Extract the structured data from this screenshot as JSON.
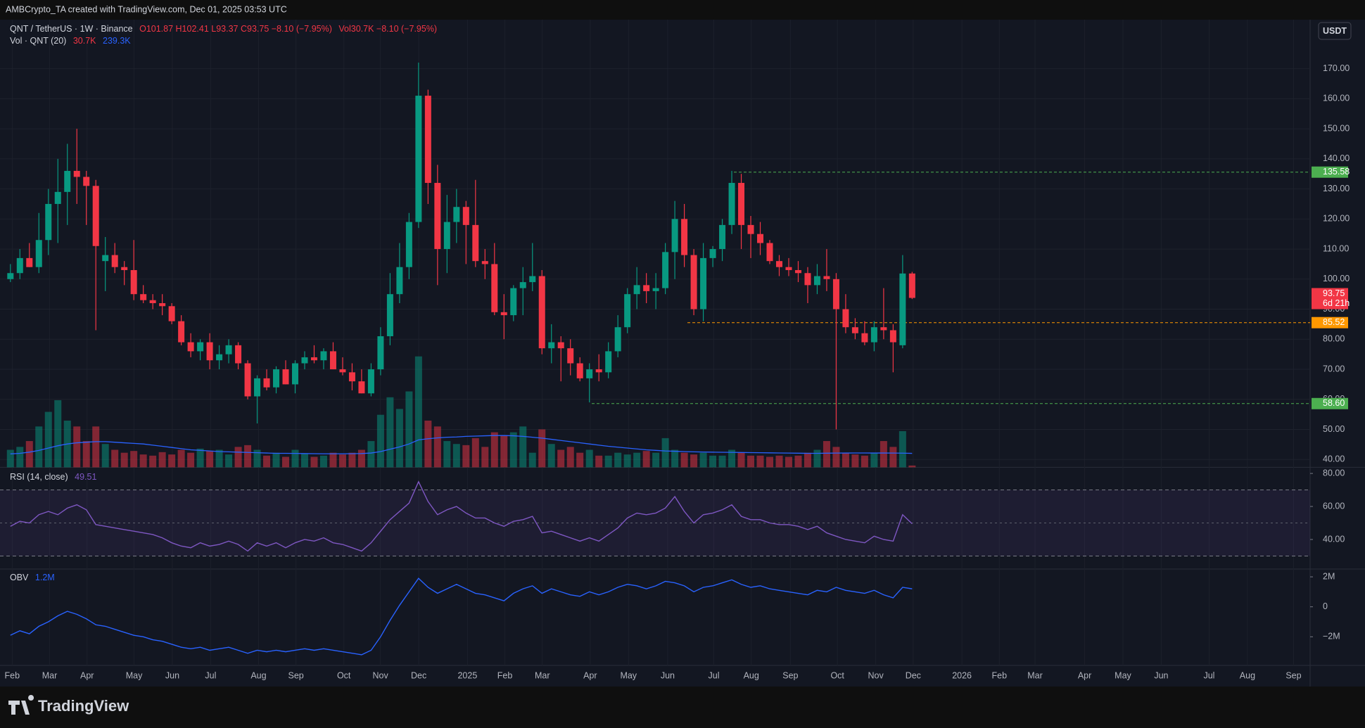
{
  "header": "AMBCrypto_TA created with TradingView.com, Dec 01, 2025 03:53 UTC",
  "footer_brand": "TradingView",
  "currency": "USDT",
  "time_axis": [
    "Feb",
    "Mar",
    "Apr",
    "May",
    "Jun",
    "Jul",
    "Aug",
    "Sep",
    "Oct",
    "Nov",
    "Dec",
    "2025",
    "Feb",
    "Mar",
    "Apr",
    "May",
    "Jun",
    "Jul",
    "Aug",
    "Sep",
    "Oct",
    "Nov",
    "Dec",
    "2026",
    "Feb",
    "Mar",
    "Apr",
    "May",
    "Jun",
    "Jul",
    "Aug",
    "Sep"
  ],
  "chart_data": [
    {
      "type": "candlestick",
      "title": "QNT / TetherUS · 1W · Binance",
      "legend_ohlc": "O101.87 H102.41 L93.37 C93.75 −8.10 (−7.95%)",
      "legend_vol": "Vol30.7K −8.10 (−7.95%)",
      "up_color": "#089981",
      "down_color": "#f23645",
      "grid": true,
      "open": [
        100,
        102,
        107,
        104,
        113,
        125,
        129,
        136,
        134,
        131,
        106,
        108,
        104,
        103,
        95,
        93,
        92,
        91,
        86,
        79,
        76,
        79,
        73,
        75,
        78,
        72,
        61,
        67,
        64,
        70,
        65,
        72,
        74,
        73,
        76,
        70,
        69,
        66,
        62,
        70,
        81,
        95,
        104,
        119,
        161,
        132,
        110,
        119,
        124,
        118,
        106,
        105,
        89,
        88,
        97,
        99,
        101,
        77,
        79,
        77,
        72,
        67,
        70,
        69,
        76,
        84,
        95,
        98,
        96,
        97,
        109,
        120,
        108,
        90,
        107,
        110,
        118,
        132,
        118,
        115,
        112,
        106,
        104,
        103,
        102,
        98,
        101,
        100,
        90,
        84,
        82,
        79,
        84,
        83,
        78,
        101.87
      ],
      "high": [
        105,
        110,
        112,
        122,
        130,
        140,
        145,
        150,
        136,
        133,
        114,
        112,
        106,
        113,
        98,
        95,
        95,
        92,
        88,
        82,
        80,
        82,
        78,
        80,
        79,
        73,
        68,
        70,
        71,
        73,
        73,
        76,
        78,
        77,
        79,
        74,
        72,
        70,
        72,
        84,
        102,
        112,
        122,
        172,
        163,
        138,
        128,
        130,
        126,
        133,
        110,
        112,
        95,
        98,
        104,
        112,
        103,
        85,
        81,
        80,
        74,
        72,
        75,
        79,
        88,
        97,
        104,
        102,
        102,
        112,
        126,
        125,
        110,
        112,
        111,
        120,
        136,
        135,
        121,
        119,
        113,
        108,
        107,
        106,
        104,
        105,
        110,
        102,
        95,
        87,
        86,
        86,
        97,
        85,
        108,
        102.41
      ],
      "low": [
        99,
        100,
        104,
        102,
        108,
        112,
        118,
        125,
        118,
        83,
        96,
        102,
        98,
        93,
        92,
        90,
        88,
        85,
        78,
        74,
        73,
        70,
        70,
        72,
        70,
        60,
        52,
        63,
        62,
        65,
        62,
        70,
        72,
        70,
        70,
        68,
        63,
        62,
        61,
        68,
        78,
        92,
        100,
        117,
        125,
        98,
        102,
        112,
        105,
        104,
        100,
        88,
        80,
        86,
        88,
        96,
        75,
        72,
        66,
        68,
        66,
        59,
        66,
        67,
        74,
        82,
        90,
        92,
        90,
        95,
        100,
        104,
        88,
        86,
        104,
        106,
        115,
        110,
        107,
        108,
        105,
        101,
        101,
        99,
        92,
        95,
        96,
        50,
        82,
        80,
        78,
        76,
        80,
        69,
        77,
        93.37
      ],
      "close": [
        102,
        107,
        104,
        113,
        125,
        129,
        136,
        134,
        131,
        111,
        108,
        104,
        103,
        95,
        93,
        92,
        91,
        86,
        79,
        76,
        79,
        73,
        75,
        78,
        72,
        61,
        67,
        64,
        70,
        65,
        72,
        74,
        73,
        76,
        70,
        69,
        66,
        62,
        70,
        81,
        95,
        104,
        119,
        161,
        132,
        110,
        119,
        124,
        118,
        106,
        105,
        89,
        88,
        97,
        99,
        101,
        77,
        79,
        77,
        72,
        67,
        70,
        69,
        76,
        84,
        95,
        98,
        96,
        97,
        109,
        120,
        108,
        90,
        107,
        110,
        118,
        132,
        118,
        115,
        112,
        106,
        104,
        103,
        102,
        98,
        101,
        100,
        90,
        84,
        82,
        79,
        84,
        83,
        79,
        101.87,
        93.75
      ],
      "ylim": [
        37.4,
        179.8
      ],
      "yticks": [
        {
          "value": 40,
          "label": "40.00"
        },
        {
          "value": 50,
          "label": "50.00"
        },
        {
          "value": 60,
          "label": "60.00"
        },
        {
          "value": 70,
          "label": "70.00"
        },
        {
          "value": 80,
          "label": "80.00"
        },
        {
          "value": 90,
          "label": "90.00"
        },
        {
          "value": 100,
          "label": "100.00"
        },
        {
          "value": 110,
          "label": "110.00"
        },
        {
          "value": 120,
          "label": "120.00"
        },
        {
          "value": 130,
          "label": "130.00"
        },
        {
          "value": 140,
          "label": "140.00"
        },
        {
          "value": 150,
          "label": "150.00"
        },
        {
          "value": 160,
          "label": "160.00"
        },
        {
          "value": 170,
          "label": "170.00"
        }
      ],
      "levels": [
        {
          "value": 135.58,
          "color": "#4caf50"
        },
        {
          "value": 85.52,
          "color": "#ff9800"
        },
        {
          "value": 58.6,
          "label": "58.60",
          "color": "#4caf50"
        }
      ],
      "countdown": "6d 21h"
    },
    {
      "type": "bar",
      "title": "Vol · QNT (20)",
      "last_label": "30.7K",
      "ma_label": "239.3K",
      "ma_color": "#2962ff",
      "values": [
        300,
        350,
        450,
        700,
        950,
        1150,
        800,
        700,
        450,
        700,
        400,
        300,
        250,
        280,
        220,
        200,
        260,
        220,
        300,
        250,
        320,
        280,
        300,
        220,
        350,
        380,
        300,
        200,
        250,
        180,
        300,
        240,
        180,
        200,
        250,
        220,
        250,
        300,
        450,
        900,
        1200,
        1000,
        1300,
        1900,
        800,
        700,
        450,
        400,
        380,
        500,
        350,
        600,
        550,
        600,
        700,
        250,
        650,
        400,
        300,
        350,
        250,
        300,
        200,
        200,
        250,
        220,
        250,
        280,
        250,
        500,
        300,
        250,
        220,
        250,
        200,
        200,
        300,
        250,
        200,
        200,
        180,
        200,
        180,
        200,
        250,
        300,
        450,
        350,
        250,
        220,
        200,
        250,
        450,
        350,
        620,
        30.7
      ],
      "ma": [
        230,
        240,
        260,
        290,
        330,
        370,
        400,
        420,
        430,
        440,
        440,
        430,
        420,
        410,
        400,
        380,
        360,
        340,
        320,
        300,
        290,
        280,
        270,
        265,
        260,
        255,
        250,
        245,
        240,
        240,
        238,
        236,
        234,
        232,
        232,
        232,
        234,
        236,
        245,
        270,
        310,
        350,
        400,
        470,
        490,
        505,
        515,
        520,
        530,
        535,
        540,
        545,
        545,
        540,
        530,
        515,
        500,
        480,
        460,
        440,
        420,
        400,
        380,
        360,
        345,
        330,
        315,
        300,
        290,
        280,
        275,
        270,
        265,
        262,
        260,
        258,
        256,
        254,
        252,
        250,
        248,
        246,
        244,
        242,
        240,
        240,
        242,
        244,
        245,
        246,
        246,
        245,
        245,
        244,
        243,
        239.3
      ]
    },
    {
      "type": "line",
      "title": "RSI (14, close)",
      "last_label": "49.51",
      "color": "#7e57c2",
      "values": [
        48,
        51,
        50,
        55,
        57,
        55,
        59,
        61,
        58,
        49,
        48,
        47,
        46,
        45,
        44,
        43,
        41,
        38,
        36,
        35,
        38,
        36,
        37,
        39,
        37,
        33,
        38,
        36,
        38,
        35,
        38,
        40,
        39,
        41,
        38,
        37,
        35,
        33,
        38,
        45,
        52,
        57,
        62,
        75,
        63,
        55,
        58,
        60,
        56,
        53,
        53,
        50,
        48,
        51,
        52,
        54,
        44,
        45,
        43,
        41,
        39,
        41,
        39,
        43,
        47,
        53,
        56,
        55,
        56,
        59,
        66,
        57,
        50,
        55,
        56,
        58,
        61,
        54,
        52,
        52,
        50,
        49,
        49,
        48,
        46,
        48,
        44,
        42,
        40,
        39,
        38,
        42,
        40,
        39,
        55,
        49.51
      ],
      "ylim": [
        22.1,
        83.7
      ],
      "yticks": [
        {
          "value": 40,
          "label": "40.00"
        },
        {
          "value": 60,
          "label": "60.00"
        },
        {
          "value": 80,
          "label": "80.00"
        }
      ],
      "bands": [
        30,
        70
      ],
      "midline": 50
    },
    {
      "type": "line",
      "title": "OBV",
      "last_label": "1.2M",
      "color": "#2962ff",
      "values": [
        -1.9,
        -1.6,
        -1.8,
        -1.3,
        -1.0,
        -0.6,
        -0.3,
        -0.5,
        -0.8,
        -1.2,
        -1.3,
        -1.5,
        -1.7,
        -1.9,
        -2.0,
        -2.2,
        -2.3,
        -2.5,
        -2.7,
        -2.8,
        -2.7,
        -2.9,
        -2.8,
        -2.7,
        -2.9,
        -3.1,
        -2.9,
        -3.0,
        -2.9,
        -3.0,
        -2.9,
        -2.8,
        -2.9,
        -2.8,
        -2.9,
        -3.0,
        -3.1,
        -3.2,
        -2.9,
        -2.0,
        -0.9,
        0.1,
        1.0,
        1.9,
        1.3,
        0.9,
        1.2,
        1.5,
        1.2,
        0.9,
        0.8,
        0.6,
        0.4,
        0.9,
        1.2,
        1.4,
        0.9,
        1.2,
        1.0,
        0.8,
        0.7,
        1.0,
        0.8,
        1.0,
        1.3,
        1.5,
        1.4,
        1.2,
        1.4,
        1.7,
        1.6,
        1.4,
        1.0,
        1.3,
        1.4,
        1.6,
        1.8,
        1.5,
        1.3,
        1.4,
        1.2,
        1.1,
        1.0,
        0.9,
        0.8,
        1.1,
        1.0,
        1.3,
        1.1,
        1.0,
        0.9,
        1.1,
        0.8,
        0.6,
        1.3,
        1.2
      ],
      "ylim": [
        -3.91,
        2.52
      ],
      "yticks": [
        {
          "value": -2,
          "label": "−2M"
        },
        0,
        {
          "value": 2,
          "label": "2M"
        }
      ]
    }
  ]
}
